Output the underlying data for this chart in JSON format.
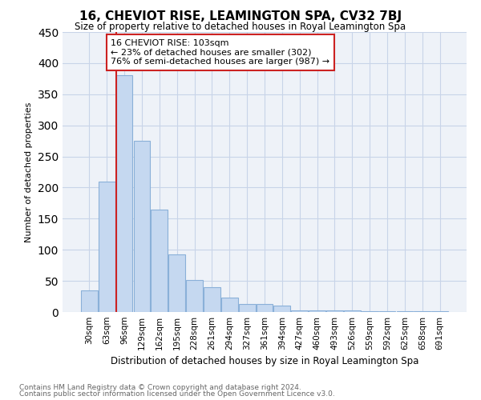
{
  "title": "16, CHEVIOT RISE, LEAMINGTON SPA, CV32 7BJ",
  "subtitle": "Size of property relative to detached houses in Royal Leamington Spa",
  "xlabel": "Distribution of detached houses by size in Royal Leamington Spa",
  "ylabel": "Number of detached properties",
  "footer_line1": "Contains HM Land Registry data © Crown copyright and database right 2024.",
  "footer_line2": "Contains public sector information licensed under the Open Government Licence v3.0.",
  "annotation_title": "16 CHEVIOT RISE: 103sqm",
  "annotation_line1": "← 23% of detached houses are smaller (302)",
  "annotation_line2": "76% of semi-detached houses are larger (987) →",
  "categories": [
    "30sqm",
    "63sqm",
    "96sqm",
    "129sqm",
    "162sqm",
    "195sqm",
    "228sqm",
    "261sqm",
    "294sqm",
    "327sqm",
    "361sqm",
    "394sqm",
    "427sqm",
    "460sqm",
    "493sqm",
    "526sqm",
    "559sqm",
    "592sqm",
    "625sqm",
    "658sqm",
    "691sqm"
  ],
  "values": [
    35,
    210,
    380,
    275,
    165,
    92,
    51,
    40,
    23,
    13,
    13,
    10,
    3,
    3,
    2,
    2,
    1,
    1,
    1,
    1,
    1
  ],
  "bar_color": "#c5d8f0",
  "bar_edge_color": "#8ab0d8",
  "highlight_color": "#cc2222",
  "grid_color": "#c8d4e8",
  "bg_color": "#eef2f8",
  "annotation_box_color": "#ffffff",
  "annotation_box_edge": "#cc2222",
  "ylim": [
    0,
    450
  ],
  "yticks": [
    0,
    50,
    100,
    150,
    200,
    250,
    300,
    350,
    400,
    450
  ],
  "property_line_x": 2.0
}
